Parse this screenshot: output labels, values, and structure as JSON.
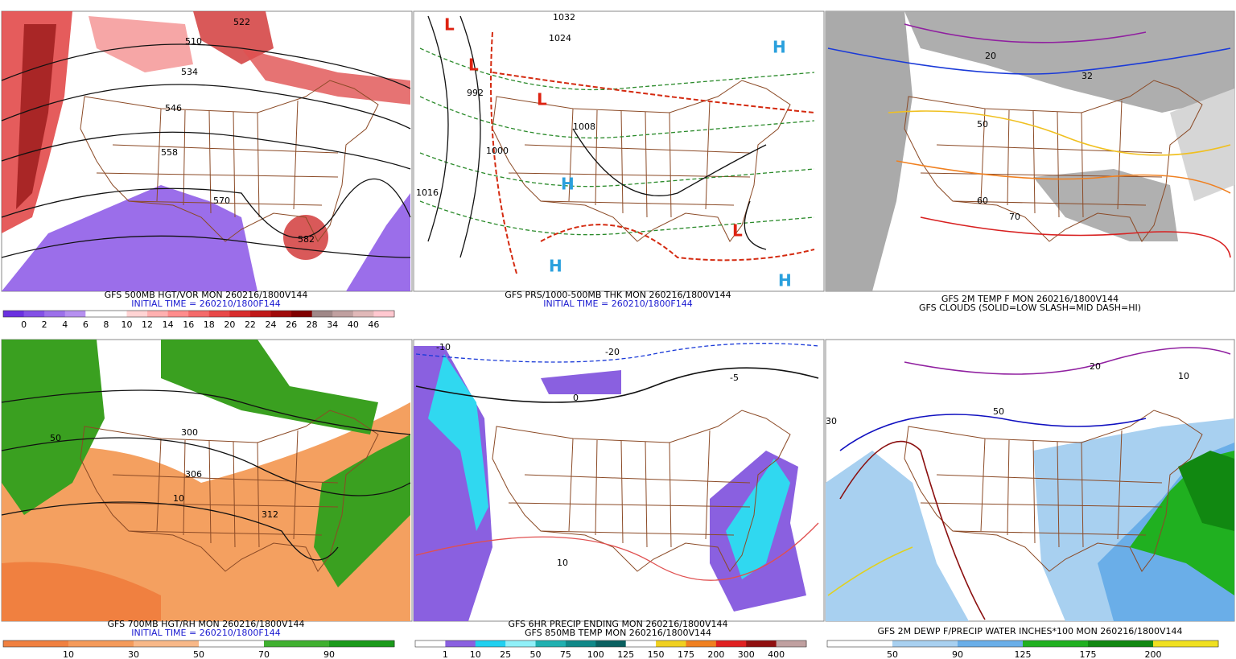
{
  "panels": [
    {
      "caption": [
        "GFS 500MB HGT/VOR MON 260216/1800V144",
        "INITIAL TIME = 260210/1800F144"
      ],
      "caption_colors": [
        "#000000",
        "#1a1ad0"
      ],
      "map_labels": [
        "510",
        "534",
        "546",
        "558",
        "570",
        "522",
        "582"
      ],
      "colorbar": {
        "labels": [
          "0",
          "2",
          "4",
          "6",
          "8",
          "10",
          "12",
          "14",
          "16",
          "18",
          "20",
          "22",
          "24",
          "26",
          "28",
          "34",
          "40",
          "46"
        ],
        "colors": [
          "#6a30e0",
          "#8350e6",
          "#9c70ea",
          "#b690f0",
          "#ffffff",
          "#ffffff",
          "#ffd4d4",
          "#ffb0b0",
          "#ff8c8c",
          "#f46a6a",
          "#e84848",
          "#d82c2c",
          "#c01818",
          "#a00a0a",
          "#800000",
          "#a08888",
          "#c0a0a0",
          "#e0b8b8",
          "#ffc8d0"
        ]
      }
    },
    {
      "caption": [
        "GFS PRS/1000-500MB THK MON 260216/1800V144",
        "INITIAL TIME = 260210/1800F144"
      ],
      "caption_colors": [
        "#000000",
        "#1a1ad0"
      ],
      "map_labels": [
        "1032",
        "1024",
        "1008",
        "1016",
        "992",
        "1000",
        "L",
        "H"
      ]
    },
    {
      "caption": [
        "GFS 2M TEMP F MON 260216/1800V144",
        "GFS CLOUDS (SOLID=LOW SLASH=MID DASH=HI)"
      ],
      "caption_colors": [
        "#000000",
        "#000000"
      ],
      "map_labels": [
        "32",
        "20",
        "60",
        "70",
        "50"
      ]
    },
    {
      "caption": [
        "GFS 700MB HGT/RH MON 260216/1800V144",
        "INITIAL TIME = 260210/1800F144"
      ],
      "caption_colors": [
        "#000000",
        "#1a1ad0"
      ],
      "map_labels": [
        "50",
        "300",
        "306",
        "312",
        "10"
      ],
      "colorbar": {
        "labels": [
          "10",
          "30",
          "50",
          "70",
          "90"
        ],
        "colors": [
          "#f08040",
          "#f49a5a",
          "#f8b888",
          "#ffffff",
          "#40b030",
          "#1a9a1a"
        ]
      }
    },
    {
      "caption": [
        "GFS 6HR PRECIP ENDING MON 260216/1800V144",
        "GFS 850MB TEMP MON 260216/1800V144"
      ],
      "caption_colors": [
        "#000000",
        "#000000"
      ],
      "map_labels": [
        "-10",
        "-20",
        "0",
        "10",
        "-5"
      ],
      "colorbar": {
        "labels": [
          "1",
          "10",
          "25",
          "50",
          "75",
          "100",
          "125",
          "150",
          "175",
          "200",
          "300",
          "400"
        ],
        "colors": [
          "#ffffff",
          "#8a60e0",
          "#20d0f0",
          "#90f0f8",
          "#20b0b0",
          "#108888",
          "#0a6060",
          "#ffffff",
          "#f0d020",
          "#f08020",
          "#e02020",
          "#901010",
          "#c0a0a0"
        ]
      }
    },
    {
      "caption": [
        "GFS 2M DEWP F/PRECIP WATER INCHES*100 MON 260216/1800V144"
      ],
      "caption_colors": [
        "#000000"
      ],
      "map_labels": [
        "30",
        "50",
        "20",
        "10"
      ],
      "colorbar": {
        "labels": [
          "50",
          "90",
          "125",
          "175",
          "200"
        ],
        "colors": [
          "#ffffff",
          "#a8d0f0",
          "#6aaee8",
          "#20b020",
          "#118811",
          "#f0e020"
        ]
      }
    }
  ]
}
